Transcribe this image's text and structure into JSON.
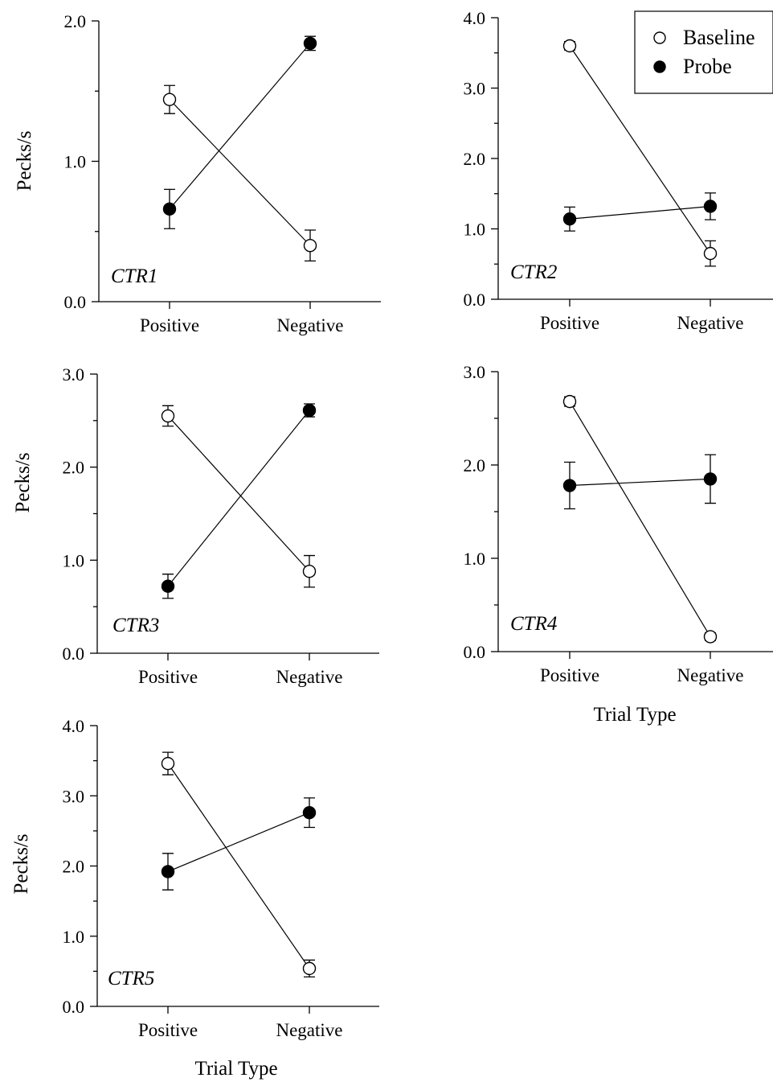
{
  "chart_data": [
    {
      "type": "line",
      "panel_label": "CTR1",
      "categories": [
        "Positive",
        "Negative"
      ],
      "ylabel": "Pecks/s",
      "xlabel": "",
      "ylim": [
        0,
        2.0
      ],
      "yticks": [
        "0.0",
        "1.0",
        "2.0"
      ],
      "series": [
        {
          "name": "Baseline",
          "marker": "open-circle",
          "values": [
            1.44,
            0.4
          ],
          "errors": [
            0.1,
            0.11
          ]
        },
        {
          "name": "Probe",
          "marker": "filled-circle",
          "values": [
            0.66,
            1.84
          ],
          "errors": [
            0.14,
            0.05
          ]
        }
      ]
    },
    {
      "type": "line",
      "panel_label": "CTR2",
      "categories": [
        "Positive",
        "Negative"
      ],
      "ylabel": "",
      "xlabel": "",
      "ylim": [
        0,
        4.0
      ],
      "yticks": [
        "0.0",
        "1.0",
        "2.0",
        "3.0",
        "4.0"
      ],
      "series": [
        {
          "name": "Baseline",
          "marker": "open-circle",
          "values": [
            3.6,
            0.65
          ],
          "errors": [
            0.06,
            0.18
          ]
        },
        {
          "name": "Probe",
          "marker": "filled-circle",
          "values": [
            1.14,
            1.32
          ],
          "errors": [
            0.17,
            0.19
          ]
        }
      ]
    },
    {
      "type": "line",
      "panel_label": "CTR3",
      "categories": [
        "Positive",
        "Negative"
      ],
      "ylabel": "Pecks/s",
      "xlabel": "",
      "ylim": [
        0,
        3.0
      ],
      "yticks": [
        "0.0",
        "1.0",
        "2.0",
        "3.0"
      ],
      "series": [
        {
          "name": "Baseline",
          "marker": "open-circle",
          "values": [
            2.55,
            0.88
          ],
          "errors": [
            0.11,
            0.17
          ]
        },
        {
          "name": "Probe",
          "marker": "filled-circle",
          "values": [
            0.72,
            2.61
          ],
          "errors": [
            0.13,
            0.07
          ]
        }
      ]
    },
    {
      "type": "line",
      "panel_label": "CTR4",
      "categories": [
        "Positive",
        "Negative"
      ],
      "ylabel": "",
      "xlabel": "Trial Type",
      "ylim": [
        0,
        3.0
      ],
      "yticks": [
        "0.0",
        "1.0",
        "2.0",
        "3.0"
      ],
      "series": [
        {
          "name": "Baseline",
          "marker": "open-circle",
          "values": [
            2.68,
            0.16
          ],
          "errors": [
            0.05,
            0.04
          ]
        },
        {
          "name": "Probe",
          "marker": "filled-circle",
          "values": [
            1.78,
            1.85
          ],
          "errors": [
            0.25,
            0.26
          ]
        }
      ]
    },
    {
      "type": "line",
      "panel_label": "CTR5",
      "categories": [
        "Positive",
        "Negative"
      ],
      "ylabel": "Pecks/s",
      "xlabel": "Trial Type",
      "ylim": [
        0,
        4.0
      ],
      "yticks": [
        "0.0",
        "1.0",
        "2.0",
        "3.0",
        "4.0"
      ],
      "series": [
        {
          "name": "Baseline",
          "marker": "open-circle",
          "values": [
            3.46,
            0.54
          ],
          "errors": [
            0.16,
            0.12
          ]
        },
        {
          "name": "Probe",
          "marker": "filled-circle",
          "values": [
            1.92,
            2.76
          ],
          "errors": [
            0.26,
            0.21
          ]
        }
      ]
    }
  ],
  "legend": {
    "placement": "top-right",
    "entries": [
      {
        "label": "Baseline",
        "marker": "open-circle"
      },
      {
        "label": "Probe",
        "marker": "filled-circle"
      }
    ]
  }
}
